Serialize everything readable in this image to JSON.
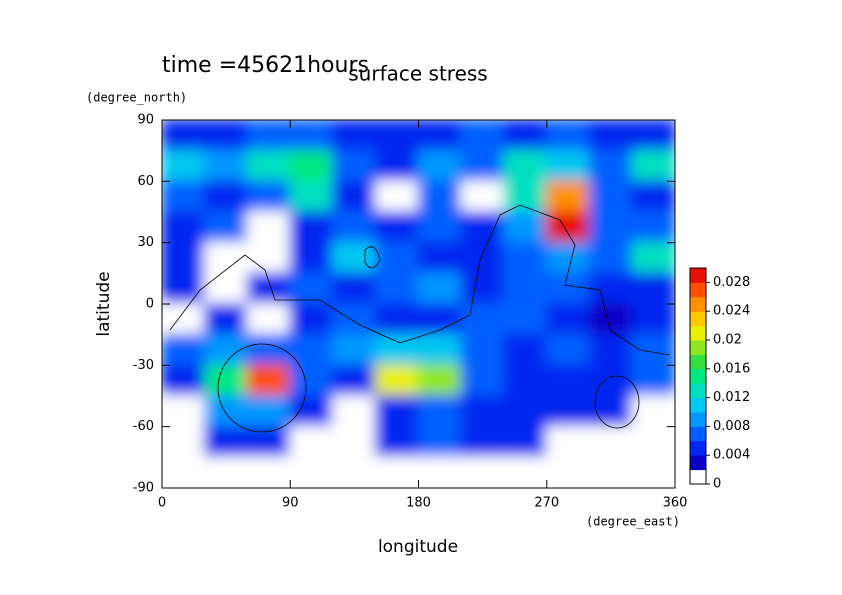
{
  "chart_data": {
    "type": "contour",
    "title": "surface stress",
    "subtitle": "time =45621hours",
    "x_label": "longitude",
    "y_label": "latitude",
    "x_unit": "(degree_east)",
    "y_unit": "(degree_north)",
    "x": [
      15,
      45,
      75,
      105,
      135,
      165,
      195,
      225,
      255,
      285,
      315,
      345
    ],
    "y": [
      82.5,
      67.5,
      52.5,
      37.5,
      22.5,
      7.5,
      -7.5,
      -22.5,
      -37.5,
      -52.5,
      -67.5,
      -82.5
    ],
    "z": [
      [
        0.004,
        0.005,
        0.006,
        0.006,
        0.005,
        0.004,
        0.005,
        0.006,
        0.005,
        0.006,
        0.005,
        0.004
      ],
      [
        0.01,
        0.008,
        0.012,
        0.014,
        0.006,
        0.005,
        0.008,
        0.006,
        0.012,
        0.01,
        0.006,
        0.012
      ],
      [
        0.006,
        0.004,
        0.006,
        0.012,
        0.004,
        0,
        0.006,
        0,
        0.012,
        0.024,
        0.006,
        0.004
      ],
      [
        0.004,
        0.006,
        0,
        0.004,
        0.006,
        0.004,
        0.006,
        0.004,
        0.008,
        0.028,
        0.006,
        0.006
      ],
      [
        0.004,
        0,
        0,
        0.004,
        0.01,
        0.006,
        0.004,
        0.005,
        0.006,
        0.008,
        0.006,
        0.012
      ],
      [
        0.004,
        0,
        0.004,
        0.006,
        0.004,
        0.006,
        0.008,
        0.004,
        0.006,
        0.006,
        0.004,
        0.004
      ],
      [
        0,
        0.004,
        0,
        0.004,
        0.006,
        0.004,
        0.004,
        0.006,
        0.006,
        0.004,
        0.002,
        0.004
      ],
      [
        0.006,
        0.008,
        0.006,
        0.006,
        0.008,
        0.01,
        0.01,
        0.006,
        0.004,
        0.006,
        0.004,
        0.006
      ],
      [
        0.004,
        0.014,
        0.026,
        0.006,
        0.004,
        0.02,
        0.018,
        0.006,
        0.004,
        0.004,
        0.004,
        0.006
      ],
      [
        0,
        0.008,
        0.008,
        0.004,
        0,
        0.004,
        0.006,
        0.004,
        0.004,
        0.004,
        0.004,
        0
      ],
      [
        0,
        0.004,
        0.004,
        0,
        0,
        0.004,
        0.006,
        0.004,
        0.004,
        0,
        0,
        0
      ],
      [
        0,
        0,
        0,
        0,
        0,
        0,
        0,
        0,
        0,
        0,
        0,
        0
      ]
    ],
    "xlim": [
      0,
      360
    ],
    "ylim": [
      -90,
      90
    ],
    "xticks": [
      0,
      90,
      180,
      270,
      360
    ],
    "yticks": [
      -90,
      -60,
      -30,
      0,
      30,
      60,
      90
    ],
    "clim": [
      0,
      0.03
    ],
    "cticks": [
      0,
      0.004,
      0.008,
      0.012,
      0.016,
      0.02,
      0.024,
      0.028
    ],
    "colors": [
      "#ffffff",
      "#0a00c8",
      "#0028f0",
      "#0060ff",
      "#0098ff",
      "#00c8f0",
      "#00e0c0",
      "#00e880",
      "#30e040",
      "#90e820",
      "#e8f000",
      "#ffc800",
      "#ff9000",
      "#ff5000",
      "#e81000"
    ]
  }
}
